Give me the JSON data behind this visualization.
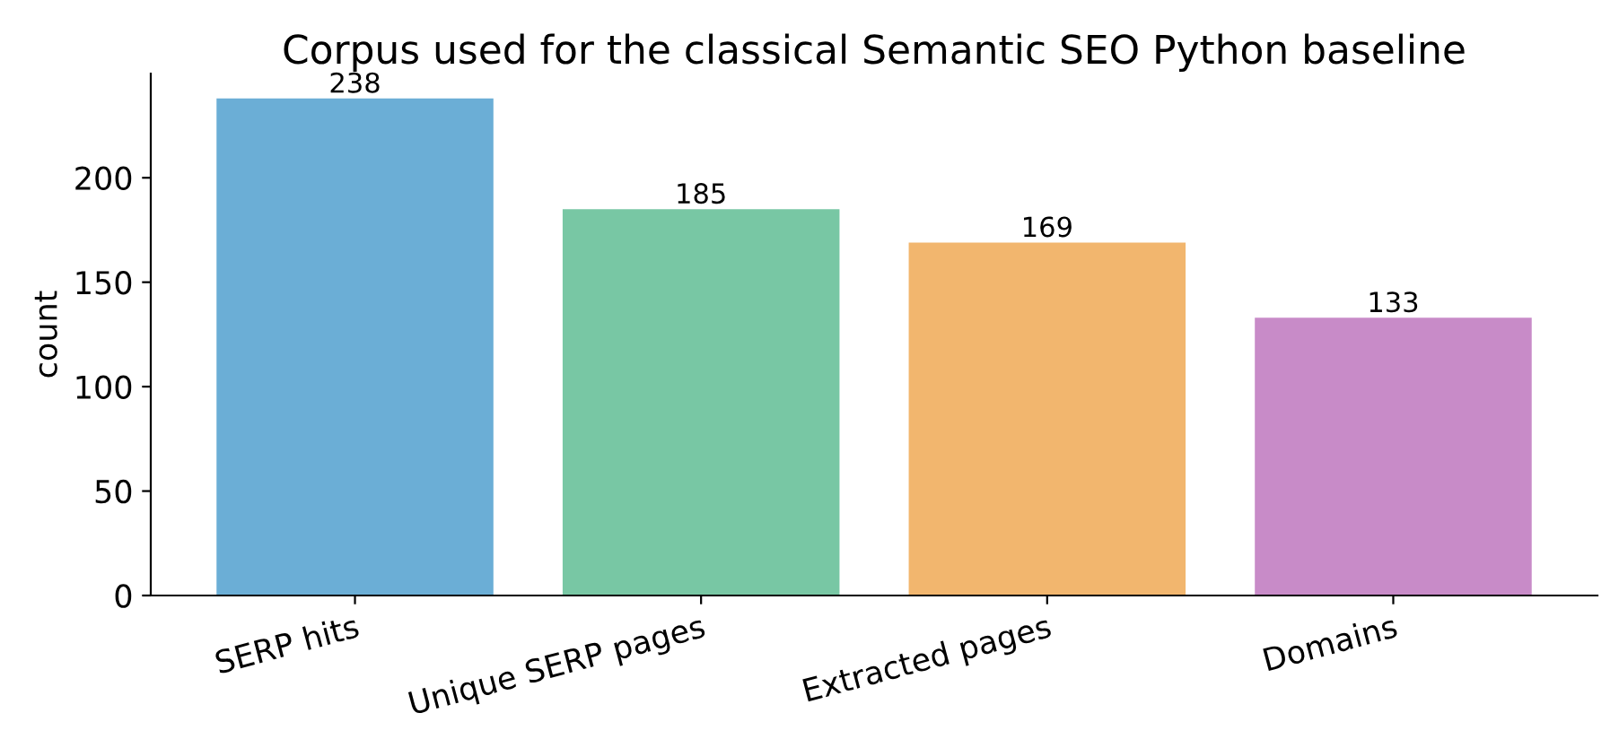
{
  "chart_data": {
    "type": "bar",
    "title": "Corpus used for the classical Semantic SEO Python baseline",
    "ylabel": "count",
    "categories": [
      "SERP hits",
      "Unique SERP pages",
      "Extracted pages",
      "Domains"
    ],
    "values": [
      238,
      185,
      169,
      133
    ],
    "colors": [
      "#6baed6",
      "#78c7a4",
      "#f2b66e",
      "#c88bc8"
    ],
    "ylim": [
      0,
      249.9
    ],
    "yticks": [
      0,
      50,
      100,
      150,
      200
    ],
    "grid": false,
    "legend": false,
    "data_labels": true
  }
}
